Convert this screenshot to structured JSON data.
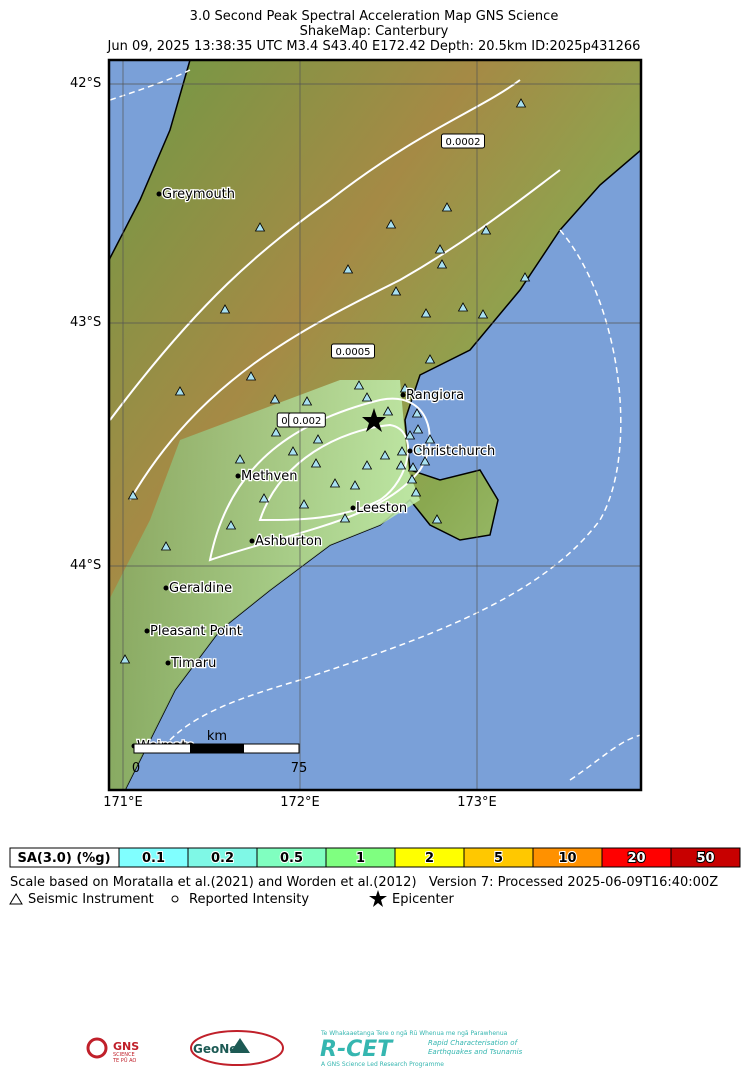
{
  "header": {
    "title_lines": [
      "3.0 Second Peak Spectral Acceleration Map GNS Science",
      "ShakeMap: Canterbury",
      "Jun 09, 2025 13:38:35 UTC M3.4 S43.40 E172.42 Depth: 20.5km ID:2025p431266"
    ]
  },
  "map": {
    "lat_labels": [
      "42°S",
      "43°S",
      "44°S"
    ],
    "lon_labels": [
      "171°E",
      "172°E",
      "173°E"
    ],
    "cities": [
      "Greymouth",
      "Rangiora",
      "Christchurch",
      "Methven",
      "Leeston",
      "Ashburton",
      "Geraldine",
      "Pleasant Point",
      "Timaru",
      "Weimate"
    ],
    "contour_labels": [
      "0.0002",
      "0.0005",
      "0.",
      "0.002"
    ],
    "scale_bar": {
      "unit": "km",
      "start": "0",
      "end": "75"
    }
  },
  "legend": {
    "title": "SA(3.0) (%g)",
    "bins": [
      {
        "label": "0.1",
        "color": "#80ffff"
      },
      {
        "label": "0.2",
        "color": "#7ff8e6"
      },
      {
        "label": "0.5",
        "color": "#80ffc0"
      },
      {
        "label": "1",
        "color": "#7fff80"
      },
      {
        "label": "2",
        "color": "#ffff00"
      },
      {
        "label": "5",
        "color": "#ffc800"
      },
      {
        "label": "10",
        "color": "#ff9100"
      },
      {
        "label": "20",
        "color": "#ff0000"
      },
      {
        "label": "50",
        "color": "#c80000"
      }
    ]
  },
  "footer": {
    "credits": "Scale based on Moratalla et al.(2021) and Worden et al.(2012)   Version 7: Processed 2025-06-09T16:40:00Z",
    "keys": [
      "Seismic Instrument",
      "Reported Intensity",
      "Epicenter"
    ]
  },
  "logos": {
    "gns": [
      "GNS",
      "SCIENCE",
      "TE PŪ AO"
    ],
    "geonet": "GeoNet",
    "rcet": {
      "name": "R-CET",
      "tagline": "Te Whakaaetanga Tere o ngā Rū Whenua me ngā Parawhenua",
      "lines": [
        "Rapid Characterisation of",
        "Earthquakes and Tsunamis"
      ],
      "footer": "A GNS Science Led Research Programme"
    }
  }
}
